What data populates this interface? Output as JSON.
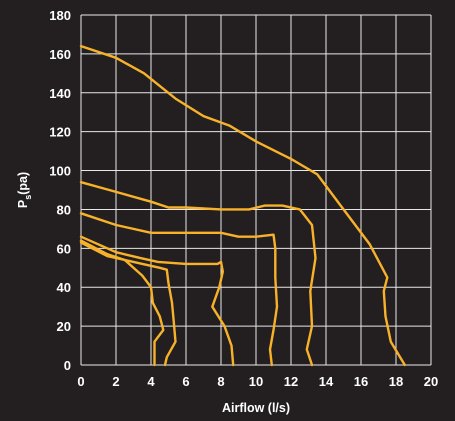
{
  "chart_data": {
    "type": "line",
    "title": "",
    "xlabel": "Airflow (l/s)",
    "ylabel_main": "P",
    "ylabel_sub": "s",
    "ylabel_tail": "(pa)",
    "xlim": [
      0,
      20
    ],
    "ylim": [
      0,
      180
    ],
    "xticks": [
      0,
      2,
      4,
      6,
      8,
      10,
      12,
      14,
      16,
      18,
      20
    ],
    "yticks": [
      0,
      20,
      40,
      60,
      80,
      100,
      120,
      140,
      160,
      180
    ],
    "grid": true,
    "colors": {
      "background": "#231f20",
      "grid": "#e8e8e8",
      "curve": "#f7b22a",
      "text": "#ffffff"
    },
    "series": [
      {
        "points": [
          [
            0,
            164
          ],
          [
            2,
            158
          ],
          [
            3.6,
            150
          ],
          [
            5.4,
            137
          ],
          [
            7,
            128
          ],
          [
            8.5,
            123
          ],
          [
            10,
            115
          ],
          [
            12,
            106
          ],
          [
            13.5,
            98
          ],
          [
            15,
            80
          ],
          [
            16.5,
            62
          ],
          [
            17.5,
            45
          ],
          [
            17.3,
            38
          ],
          [
            17.4,
            25
          ],
          [
            17.7,
            12
          ],
          [
            18.5,
            0
          ]
        ]
      },
      {
        "points": [
          [
            0,
            94
          ],
          [
            2,
            89
          ],
          [
            4,
            84
          ],
          [
            5,
            81
          ],
          [
            6,
            81
          ],
          [
            8,
            80
          ],
          [
            9.6,
            80
          ],
          [
            10.5,
            82
          ],
          [
            11.5,
            82
          ],
          [
            12.5,
            80
          ],
          [
            13.2,
            72
          ],
          [
            13.4,
            55
          ],
          [
            13.1,
            38
          ],
          [
            13.2,
            20
          ],
          [
            12.9,
            8
          ],
          [
            13.2,
            0
          ]
        ]
      },
      {
        "points": [
          [
            0,
            78
          ],
          [
            2,
            72
          ],
          [
            4,
            68
          ],
          [
            6,
            68
          ],
          [
            8,
            68
          ],
          [
            9,
            66
          ],
          [
            10,
            66
          ],
          [
            11,
            67
          ],
          [
            11.1,
            60
          ],
          [
            11.1,
            45
          ],
          [
            11.2,
            30
          ],
          [
            11,
            18
          ],
          [
            10.8,
            8
          ],
          [
            10.9,
            0
          ]
        ]
      },
      {
        "points": [
          [
            0,
            66
          ],
          [
            2,
            58
          ],
          [
            3.4,
            55
          ],
          [
            4.4,
            53
          ],
          [
            6,
            52
          ],
          [
            7.8,
            52
          ],
          [
            8,
            53
          ],
          [
            8.1,
            48
          ],
          [
            7.9,
            40
          ],
          [
            7.5,
            30
          ],
          [
            8.2,
            20
          ],
          [
            8.6,
            10
          ],
          [
            8.7,
            0
          ]
        ]
      },
      {
        "points": [
          [
            0,
            63
          ],
          [
            1.5,
            56
          ],
          [
            3,
            53
          ],
          [
            4.5,
            50
          ],
          [
            4.9,
            49
          ],
          [
            5,
            42
          ],
          [
            5.2,
            32
          ],
          [
            5.3,
            22
          ],
          [
            5.4,
            12
          ],
          [
            4.9,
            4
          ],
          [
            4.8,
            0
          ]
        ]
      },
      {
        "points": [
          [
            0,
            64
          ],
          [
            1.5,
            57
          ],
          [
            2.5,
            54
          ],
          [
            3.5,
            46
          ],
          [
            4,
            40
          ],
          [
            4.1,
            32
          ],
          [
            4.5,
            25
          ],
          [
            4.7,
            18
          ],
          [
            4.2,
            12
          ],
          [
            4.2,
            0
          ]
        ]
      }
    ]
  }
}
